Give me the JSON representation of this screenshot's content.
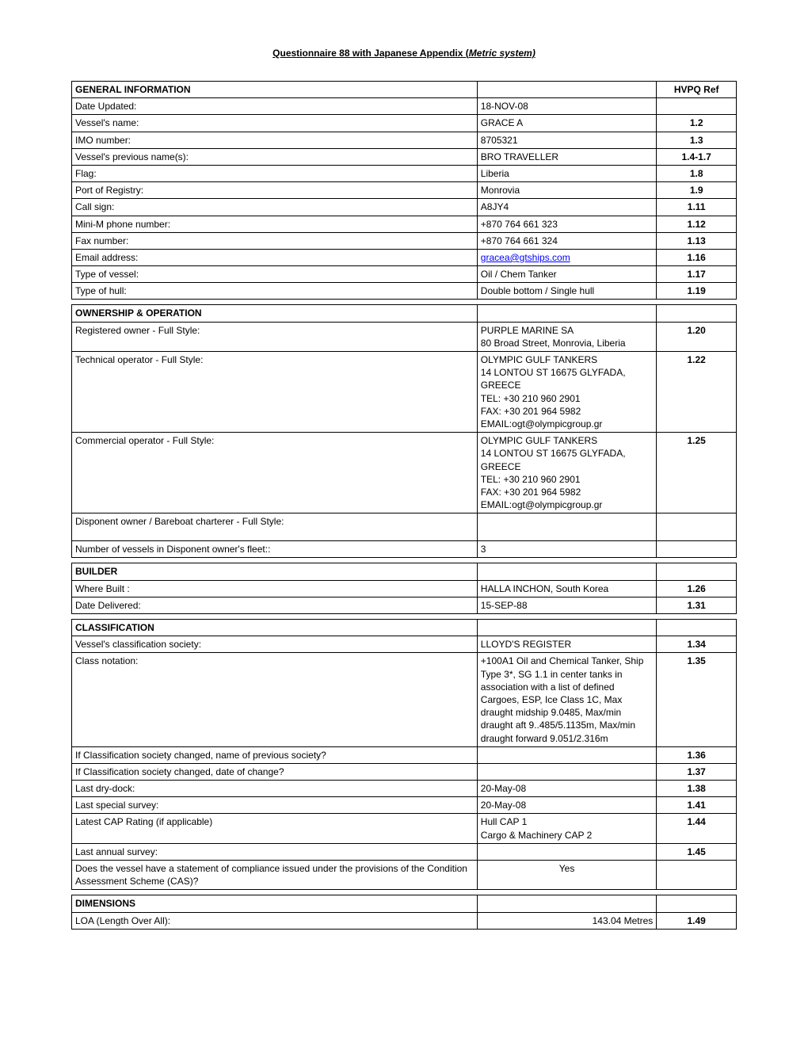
{
  "doc_title": "Questionnaire 88 with Japanese Appendix (",
  "doc_title_ital": "Metric system)",
  "hvpq_ref_header": "HVPQ Ref",
  "sections": {
    "general": {
      "header": "GENERAL INFORMATION",
      "rows": [
        {
          "label": "Date Updated:",
          "value": "18-NOV-08",
          "ref": ""
        },
        {
          "label": "Vessel's name:",
          "value": "GRACE A",
          "ref": "1.2"
        },
        {
          "label": "IMO number:",
          "value": "8705321",
          "ref": "1.3"
        },
        {
          "label": "Vessel's previous name(s):",
          "value": "BRO TRAVELLER",
          "ref": "1.4-1.7"
        },
        {
          "label": "Flag:",
          "value": "Liberia",
          "ref": "1.8"
        },
        {
          "label": "Port of Registry:",
          "value": "Monrovia",
          "ref": "1.9"
        },
        {
          "label": "Call sign:",
          "value": "A8JY4",
          "ref": "1.11"
        },
        {
          "label": "Mini-M phone number:",
          "value": "+870 764 661 323",
          "ref": "1.12"
        },
        {
          "label": "Fax number:",
          "value": "+870 764 661 324",
          "ref": "1.13"
        },
        {
          "label": "Email address:",
          "value": "gracea@gtships.com",
          "ref": "1.16",
          "is_link": true
        },
        {
          "label": "Type of vessel:",
          "value": "Oil / Chem Tanker",
          "ref": "1.17"
        },
        {
          "label": "Type of hull:",
          "value": "Double bottom / Single hull",
          "ref": "1.19"
        }
      ]
    },
    "ownership": {
      "header": "OWNERSHIP & OPERATION",
      "rows": [
        {
          "label": "Registered owner - Full Style:",
          "value": "PURPLE MARINE SA\n80 Broad Street, Monrovia, Liberia",
          "ref": "1.20"
        },
        {
          "label": "Technical operator - Full Style:",
          "value": "OLYMPIC GULF TANKERS\n14 LONTOU ST 16675 GLYFADA, GREECE\nTEL: +30 210 960 2901\nFAX: +30 201 964 5982\nEMAIL:ogt@olympicgroup.gr",
          "ref": "1.22"
        },
        {
          "label": "Commercial operator - Full Style:",
          "value": "OLYMPIC GULF TANKERS\n14 LONTOU ST 16675 GLYFADA, GREECE\nTEL: +30 210 960 2901\nFAX: +30 201 964 5982\nEMAIL:ogt@olympicgroup.gr",
          "ref": "1.25"
        },
        {
          "label": "Disponent owner / Bareboat charterer - Full Style:",
          "value": " ",
          "ref": "",
          "tall": true
        },
        {
          "label": "Number of vessels in Disponent owner's fleet::",
          "value": "3",
          "ref": ""
        }
      ]
    },
    "builder": {
      "header": "BUILDER",
      "rows": [
        {
          "label": "Where Built :",
          "value": "HALLA INCHON, South Korea",
          "ref": "1.26"
        },
        {
          "label": "Date Delivered:",
          "value": "15-SEP-88",
          "ref": "1.31"
        }
      ]
    },
    "classification": {
      "header": "CLASSIFICATION",
      "rows": [
        {
          "label": "Vessel's classification society:",
          "value": "LLOYD'S REGISTER",
          "ref": "1.34"
        },
        {
          "label": "Class notation:",
          "value": "+100A1 Oil and Chemical Tanker, Ship Type 3*, SG 1.1 in center tanks in association with a list of defined Cargoes, ESP, Ice Class 1C, Max draught midship 9.0485, Max/min draught aft 9..485/5.1135m, Max/min draught forward 9.051/2.316m",
          "ref": "1.35"
        },
        {
          "label": "If Classification society changed, name of previous society?",
          "value": "",
          "ref": "1.36"
        },
        {
          "label": "If Classification society changed, date of change?",
          "value": "",
          "ref": "1.37"
        },
        {
          "label": "Last dry-dock:",
          "value": "20-May-08",
          "ref": "1.38"
        },
        {
          "label": "Last special survey:",
          "value": "20-May-08",
          "ref": "1.41"
        },
        {
          "label": "Latest CAP Rating (if applicable)",
          "value": "Hull CAP 1\nCargo & Machinery CAP 2",
          "ref": "1.44"
        },
        {
          "label": "Last annual survey:",
          "value": "",
          "ref": "1.45"
        },
        {
          "label": "Does the vessel have a statement of compliance issued under the provisions of the Condition Assessment Scheme (CAS)?",
          "value": "Yes",
          "ref": "",
          "center": true
        }
      ]
    },
    "dimensions": {
      "header": "DIMENSIONS",
      "rows": [
        {
          "label": "LOA (Length Over All):",
          "value": "143.04 Metres",
          "ref": "1.49",
          "right": true
        }
      ]
    }
  }
}
